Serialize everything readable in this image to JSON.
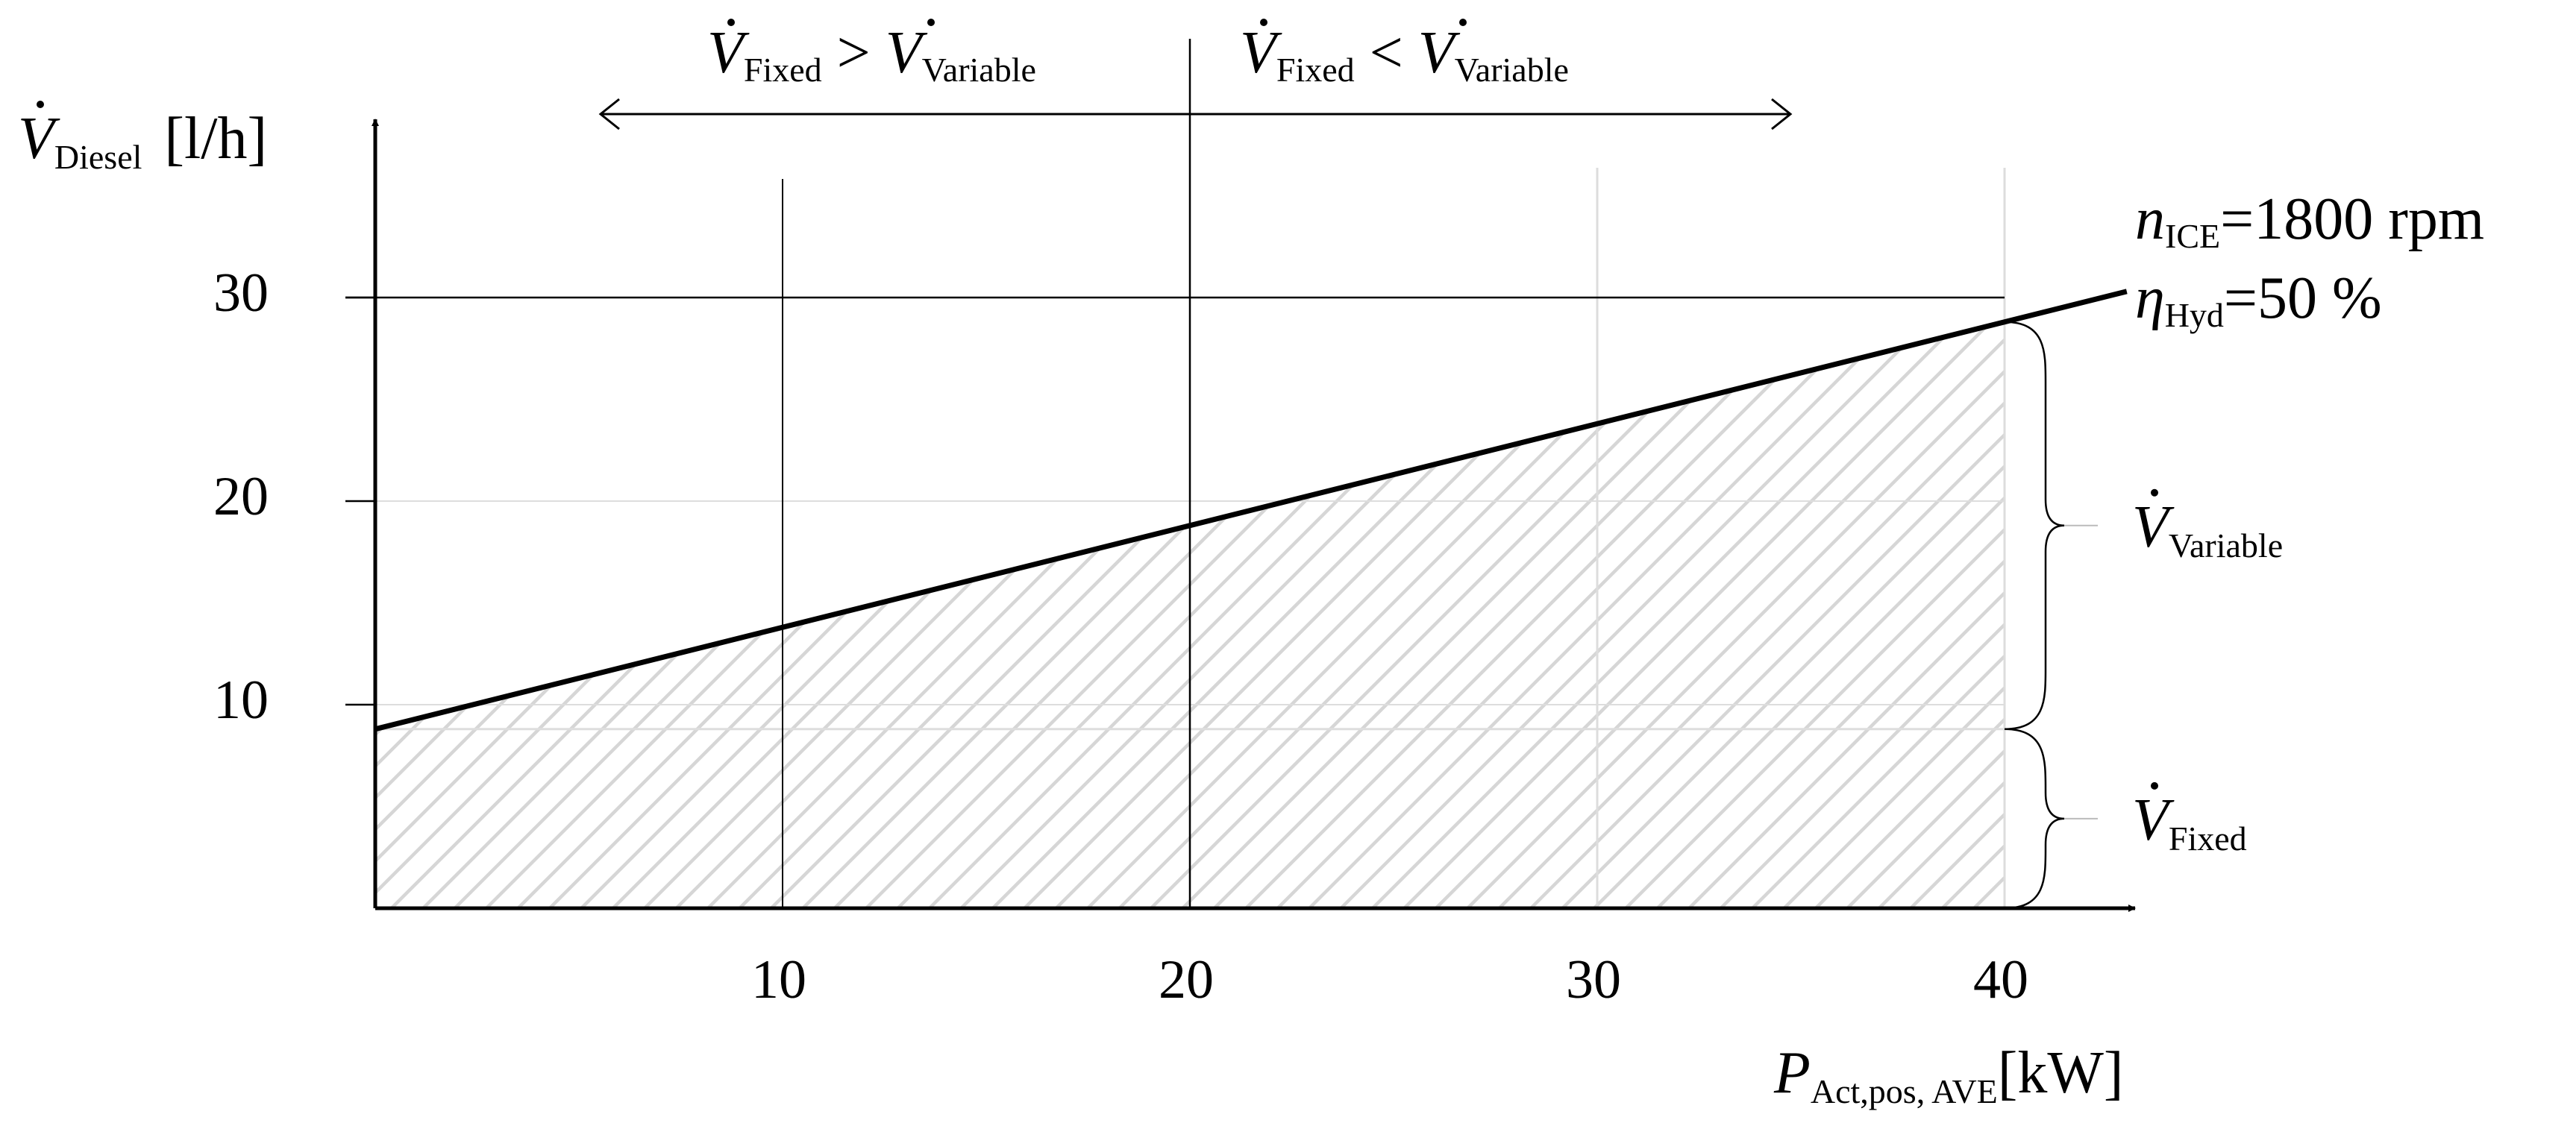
{
  "chart_data": {
    "type": "area",
    "title": "",
    "x": [
      0,
      40
    ],
    "xlim": [
      0,
      43
    ],
    "ylim": [
      0,
      38
    ],
    "xticks": [
      "10",
      "20",
      "30",
      "40"
    ],
    "yticks": [
      "10",
      "20",
      "30"
    ],
    "xlabel": {
      "main": "P",
      "sub": "Act,pos, AVE",
      "unit": "[kW]"
    },
    "ylabel": {
      "main": "V",
      "sub": "Diesel",
      "unit": "[l/h]"
    },
    "series": [
      {
        "name": "",
        "type": "line",
        "x": [
          0,
          43
        ],
        "y": [
          8.8,
          30.3
        ]
      }
    ],
    "regions": {
      "fixed": {
        "y": [
          0,
          8.8
        ],
        "label": {
          "main": "V",
          "sub": "Fixed"
        }
      },
      "variable": {
        "y": [
          8.8,
          28.8
        ],
        "label": {
          "main": "V",
          "sub": "Variable"
        }
      }
    },
    "reference_lines": {
      "horizontal_y": 30,
      "vertical_x": 20
    },
    "annotations": {
      "left_region": {
        "lhs": {
          "main": "V",
          "sub": "Fixed"
        },
        "op": ">",
        "rhs": {
          "main": "V",
          "sub": "Variable"
        }
      },
      "right_region": {
        "lhs": {
          "main": "V",
          "sub": "Fixed"
        },
        "op": "<",
        "rhs": {
          "main": "V",
          "sub": "Variable"
        }
      },
      "params": [
        {
          "main": "n",
          "sub": "ICE",
          "value": "=1800 rpm"
        },
        {
          "main": "η",
          "sub": "Hyd",
          "value": "=50 %"
        }
      ]
    },
    "grid": true,
    "legend": "none",
    "colors": {
      "line": "#000000",
      "grid": "#dddddd",
      "hatch": "#d6d6d6"
    }
  }
}
